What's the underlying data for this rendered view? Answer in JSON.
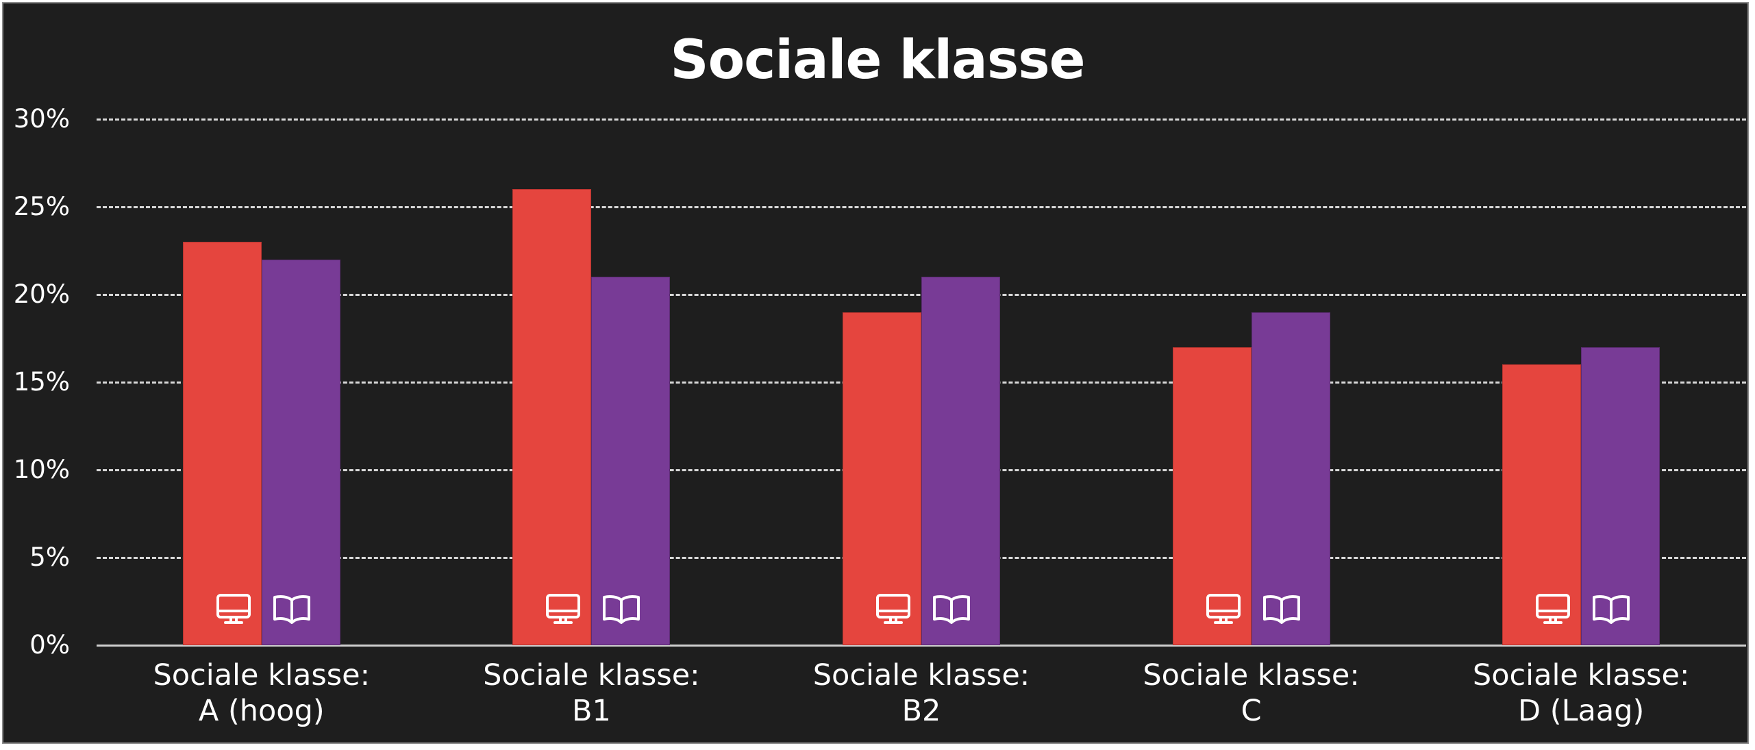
{
  "chart_data": {
    "type": "bar",
    "title": "Sociale klasse",
    "xlabel": "",
    "ylabel": "",
    "categories": [
      [
        "Sociale klasse:",
        "A (hoog)"
      ],
      [
        "Sociale klasse:",
        "B1"
      ],
      [
        "Sociale klasse:",
        "B2"
      ],
      [
        "Sociale klasse:",
        "C"
      ],
      [
        "Sociale klasse:",
        "D (Laag)"
      ]
    ],
    "series": [
      {
        "name": "online",
        "icon": "monitor-icon",
        "color": "#e5453e",
        "values": [
          23,
          26,
          19,
          17,
          16
        ]
      },
      {
        "name": "print",
        "icon": "open-book-icon",
        "color": "#783b96",
        "values": [
          22,
          21,
          21,
          19,
          17
        ]
      }
    ],
    "ylim": [
      0,
      30
    ],
    "yticks": [
      "0%",
      "5%",
      "10%",
      "15%",
      "20%",
      "25%",
      "30%"
    ],
    "grid": true,
    "legend": "none (series identified by icons in bars)",
    "background": "#1e1e1e"
  },
  "title": "Sociale klasse",
  "x_labels": [
    {
      "line1": "Sociale klasse:",
      "line2": "A (hoog)"
    },
    {
      "line1": "Sociale klasse:",
      "line2": "B1"
    },
    {
      "line1": "Sociale klasse:",
      "line2": "B2"
    },
    {
      "line1": "Sociale klasse:",
      "line2": "C"
    },
    {
      "line1": "Sociale klasse:",
      "line2": "D (Laag)"
    }
  ]
}
